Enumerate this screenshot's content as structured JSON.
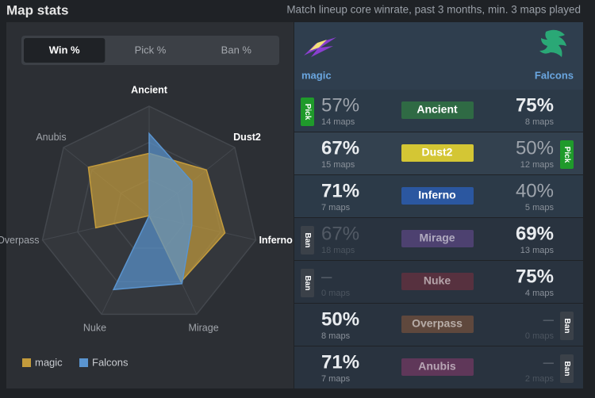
{
  "header": {
    "title": "Map stats",
    "subtitle": "Match lineup core winrate, past 3 months, min. 3 maps played"
  },
  "tabs": [
    {
      "label": "Win %",
      "active": true
    },
    {
      "label": "Pick %",
      "active": false
    },
    {
      "label": "Ban %",
      "active": false
    }
  ],
  "chart_data": {
    "type": "radar",
    "categories": [
      "Ancient",
      "Dust2",
      "Inferno",
      "Mirage",
      "Nuke",
      "Overpass",
      "Anubis"
    ],
    "rlim": [
      0,
      100
    ],
    "rticks": [
      33,
      67,
      100
    ],
    "series": [
      {
        "name": "magic",
        "color": "#c39b3c",
        "values": [
          57,
          67,
          71,
          67,
          null,
          50,
          71
        ]
      },
      {
        "name": "Falcons",
        "color": "#5a94cf",
        "values": [
          75,
          50,
          40,
          69,
          75,
          null,
          null
        ]
      }
    ]
  },
  "rows": [
    {
      "map": "Ancient",
      "color": "#2f6a44",
      "dimmed": false,
      "magic": {
        "win": "57%",
        "maps": "14 maps",
        "badge": {
          "label": "Pick",
          "color": "#1f9a2b"
        }
      },
      "falcons": {
        "win": "75%",
        "maps": "8 maps",
        "badge": null
      }
    },
    {
      "map": "Dust2",
      "color": "#d4c634",
      "dimmed": false,
      "magic": {
        "win": "67%",
        "maps": "15 maps",
        "badge": null
      },
      "falcons": {
        "win": "50%",
        "maps": "12 maps",
        "badge": {
          "label": "Pick",
          "color": "#1f9a2b"
        }
      }
    },
    {
      "map": "Inferno",
      "color": "#2b57a0",
      "dimmed": false,
      "magic": {
        "win": "71%",
        "maps": "7 maps",
        "badge": null
      },
      "falcons": {
        "win": "40%",
        "maps": "5 maps",
        "badge": null
      }
    },
    {
      "map": "Mirage",
      "color": "#6c4c99",
      "dimmed": true,
      "magic": {
        "win": "67%",
        "maps": "18 maps",
        "badge": {
          "label": "Ban",
          "color": "#3b4149"
        }
      },
      "falcons": {
        "win": "69%",
        "maps": "13 maps",
        "badge": null
      }
    },
    {
      "map": "Nuke",
      "color": "#7d3040",
      "dimmed": true,
      "magic": {
        "win": "–",
        "maps": "0 maps",
        "badge": {
          "label": "Ban",
          "color": "#3b4149"
        }
      },
      "falcons": {
        "win": "75%",
        "maps": "4 maps",
        "badge": null
      }
    },
    {
      "map": "Overpass",
      "color": "#8c5a3c",
      "dimmed": true,
      "magic": {
        "win": "50%",
        "maps": "8 maps",
        "badge": null
      },
      "falcons": {
        "win": "–",
        "maps": "0 maps",
        "badge": {
          "label": "Ban",
          "color": "#3b4149"
        }
      }
    },
    {
      "map": "Anubis",
      "color": "#8c3a70",
      "dimmed": true,
      "magic": {
        "win": "71%",
        "maps": "7 maps",
        "badge": null
      },
      "falcons": {
        "win": "–",
        "maps": "2 maps",
        "badge": {
          "label": "Ban",
          "color": "#3b4149"
        }
      }
    }
  ]
}
